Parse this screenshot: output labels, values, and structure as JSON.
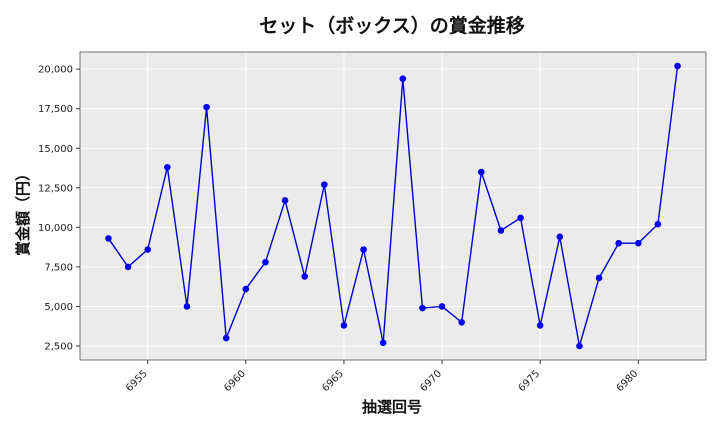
{
  "chart_data": {
    "type": "line",
    "title": "セット（ボックス）の賞金推移",
    "xlabel": "抽選回号",
    "ylabel": "賞金額（円）",
    "x": [
      6953,
      6954,
      6955,
      6956,
      6957,
      6958,
      6959,
      6960,
      6961,
      6962,
      6963,
      6964,
      6965,
      6966,
      6967,
      6968,
      6969,
      6970,
      6971,
      6972,
      6973,
      6974,
      6975,
      6976,
      6977,
      6978,
      6979,
      6980,
      6981,
      6982
    ],
    "series": [
      {
        "values": [
          9300,
          7500,
          8600,
          13800,
          5000,
          17600,
          3000,
          6100,
          7800,
          11700,
          6900,
          12700,
          3800,
          8600,
          2700,
          19400,
          4900,
          5000,
          4000,
          13500,
          9800,
          10600,
          3800,
          9400,
          2500,
          6800,
          9000,
          9000,
          10200,
          20200
        ]
      }
    ],
    "xticks": [
      6955,
      6960,
      6965,
      6970,
      6975,
      6980
    ],
    "yticks": [
      2500,
      5000,
      7500,
      10000,
      12500,
      15000,
      17500,
      20000
    ],
    "ytick_labels": [
      "2,500",
      "5,000",
      "7,500",
      "10,000",
      "12,500",
      "15,000",
      "17,500",
      "20,000"
    ],
    "xlim": [
      6951.55,
      6983.45
    ],
    "ylim": [
      1615,
      21085
    ],
    "grid": true,
    "colors": {
      "line": "#0000cc",
      "marker": "#0000ee",
      "plot_bg": "#ebebeb",
      "grid": "#ffffff"
    }
  }
}
